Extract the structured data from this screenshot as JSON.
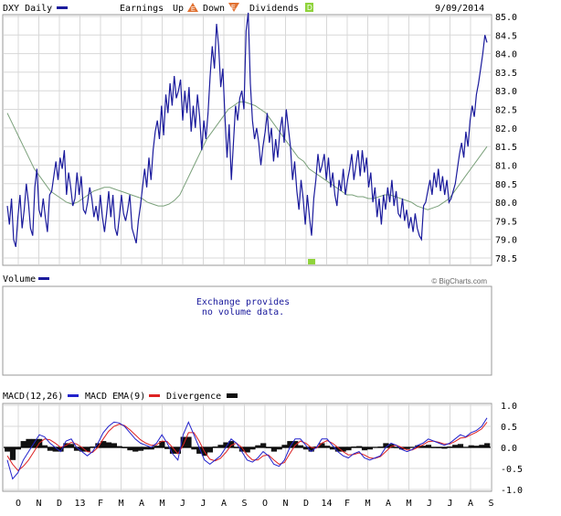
{
  "header": {
    "symbol_label": "DXY Daily",
    "earnings_label": "Earnings",
    "up_label": "Up",
    "down_label": "Down",
    "dividends_label": "Dividends",
    "date": "9/09/2014"
  },
  "volume": {
    "label": "Volume",
    "copyright": "© BigCharts.com",
    "note_line1": "Exchange provides",
    "note_line2": "no volume data."
  },
  "macd": {
    "label": "MACD(12,26)",
    "ema_label": "MACD EMA(9)",
    "divergence_label": "Divergence"
  },
  "colors": {
    "price": "#1a1a9c",
    "moving_average": "#7aa07a",
    "macd": "#2222cc",
    "ema": "#dd2222",
    "divergence": "#111111",
    "up_marker": "#e07030",
    "down_marker": "#e07030",
    "dividend_marker": "#8fd33b"
  },
  "chart_data": [
    {
      "type": "line",
      "series": [
        {
          "values": [
            79.9,
            79.4,
            80.1,
            79.0,
            78.8,
            79.6,
            80.2,
            79.3,
            79.8,
            80.5,
            80.0,
            79.3,
            79.1,
            80.4,
            80.9,
            79.8,
            79.6,
            80.1,
            79.6,
            79.2,
            80.2,
            80.3,
            80.7,
            81.1,
            80.6,
            81.2,
            80.9,
            81.4,
            80.2,
            80.8,
            80.4,
            79.9,
            80.1,
            80.8,
            80.2,
            80.7,
            79.8,
            79.7,
            80.0,
            80.4,
            80.1,
            79.6,
            79.9,
            79.5,
            80.2,
            79.6,
            79.2,
            79.7,
            80.3,
            79.6,
            80.2,
            79.3,
            79.1,
            79.6,
            80.2,
            79.7,
            79.5,
            79.8,
            80.2,
            79.3,
            79.1,
            78.9,
            79.5,
            79.9,
            80.4,
            80.9,
            80.4,
            81.2,
            80.6,
            81.4,
            81.9,
            82.2,
            81.7,
            82.6,
            81.8,
            82.9,
            82.4,
            83.2,
            82.6,
            83.4,
            82.8,
            83.0,
            83.3,
            82.2,
            83.0,
            82.4,
            83.1,
            81.9,
            82.6,
            82.0,
            82.9,
            82.3,
            81.4,
            82.2,
            81.7,
            82.4,
            83.4,
            84.2,
            83.6,
            84.8,
            84.2,
            83.1,
            83.6,
            82.3,
            81.2,
            82.1,
            80.6,
            81.6,
            82.6,
            82.2,
            82.8,
            83.0,
            82.5,
            84.6,
            85.1,
            83.2,
            82.2,
            81.7,
            82.0,
            81.6,
            81.0,
            81.5,
            81.9,
            82.4,
            81.6,
            82.0,
            81.1,
            81.7,
            81.2,
            81.9,
            82.3,
            81.6,
            82.5,
            82.0,
            81.5,
            80.6,
            81.1,
            80.3,
            79.8,
            80.6,
            80.1,
            79.4,
            80.2,
            79.6,
            79.1,
            80.1,
            80.6,
            81.3,
            80.8,
            81.0,
            81.3,
            80.6,
            81.2,
            80.4,
            80.8,
            80.2,
            79.9,
            80.6,
            80.3,
            80.9,
            80.2,
            80.6,
            80.9,
            81.3,
            80.6,
            81.0,
            81.4,
            80.7,
            81.4,
            80.8,
            81.2,
            80.4,
            80.8,
            80.0,
            80.4,
            79.6,
            80.1,
            79.4,
            80.2,
            79.8,
            80.4,
            80.0,
            80.6,
            79.9,
            80.3,
            79.7,
            79.6,
            80.1,
            79.5,
            79.8,
            79.3,
            79.6,
            79.2,
            79.7,
            79.3,
            79.1,
            79.0,
            79.9,
            80.0,
            80.3,
            80.6,
            80.2,
            80.8,
            80.4,
            80.9,
            80.3,
            80.7,
            80.2,
            80.6,
            80.0,
            80.1,
            80.3,
            80.5,
            80.9,
            81.3,
            81.6,
            81.2,
            81.9,
            81.5,
            82.2,
            82.6,
            82.3,
            82.9,
            83.2,
            83.6,
            84.0,
            84.5,
            84.3
          ]
        },
        {
          "values": [
            82.4,
            82.1,
            81.8,
            81.5,
            81.2,
            80.9,
            80.7,
            80.5,
            80.3,
            80.2,
            80.1,
            80.0,
            79.95,
            80.0,
            80.1,
            80.2,
            80.3,
            80.35,
            80.4,
            80.4,
            80.35,
            80.3,
            80.25,
            80.2,
            80.15,
            80.1,
            80.0,
            79.95,
            79.9,
            79.9,
            79.95,
            80.05,
            80.2,
            80.5,
            80.8,
            81.1,
            81.4,
            81.7,
            81.9,
            82.1,
            82.3,
            82.5,
            82.6,
            82.7,
            82.7,
            82.65,
            82.6,
            82.5,
            82.4,
            82.2,
            82.0,
            81.8,
            81.6,
            81.4,
            81.2,
            81.1,
            80.9,
            80.8,
            80.7,
            80.6,
            80.5,
            80.4,
            80.3,
            80.2,
            80.2,
            80.15,
            80.15,
            80.1,
            80.1,
            80.15,
            80.2,
            80.2,
            80.15,
            80.1,
            80.05,
            80.0,
            79.9,
            79.85,
            79.8,
            79.85,
            79.9,
            80.0,
            80.1,
            80.3,
            80.5,
            80.7,
            80.9,
            81.1,
            81.3,
            81.5
          ]
        }
      ],
      "x_tick_labels": [
        "O",
        "N",
        "D",
        "13",
        "F",
        "M",
        "A",
        "M",
        "J",
        "J",
        "A",
        "S",
        "O",
        "N",
        "D",
        "14",
        "F",
        "M",
        "A",
        "M",
        "J",
        "J",
        "A",
        "S"
      ],
      "y_ticks": [
        "85.0",
        "84.5",
        "84.0",
        "83.5",
        "83.0",
        "82.5",
        "82.0",
        "81.5",
        "81.0",
        "80.5",
        "80.0",
        "79.5",
        "79.0",
        "78.5"
      ],
      "ylim": [
        78.5,
        85.0
      ],
      "grid": true,
      "events": [
        {
          "type": "dividend",
          "x_index": 144
        }
      ]
    },
    {
      "type": "line",
      "series": [
        {
          "values": [
            -0.3,
            -0.75,
            -0.6,
            -0.3,
            -0.1,
            0.1,
            0.3,
            0.25,
            0.1,
            0.0,
            -0.1,
            0.15,
            0.2,
            0.0,
            -0.1,
            -0.2,
            -0.1,
            0.1,
            0.35,
            0.5,
            0.6,
            0.58,
            0.5,
            0.35,
            0.2,
            0.1,
            0.05,
            0.0,
            0.1,
            0.3,
            0.1,
            -0.15,
            -0.3,
            0.3,
            0.6,
            0.3,
            0.0,
            -0.3,
            -0.4,
            -0.3,
            -0.2,
            0.0,
            0.2,
            0.1,
            -0.1,
            -0.3,
            -0.35,
            -0.25,
            -0.1,
            -0.2,
            -0.4,
            -0.45,
            -0.3,
            0.0,
            0.2,
            0.2,
            0.05,
            -0.1,
            0.0,
            0.2,
            0.2,
            0.05,
            -0.1,
            -0.2,
            -0.25,
            -0.15,
            -0.1,
            -0.25,
            -0.3,
            -0.25,
            -0.2,
            0.0,
            0.1,
            0.05,
            -0.05,
            -0.1,
            -0.05,
            0.05,
            0.1,
            0.2,
            0.15,
            0.1,
            0.05,
            0.1,
            0.2,
            0.3,
            0.25,
            0.35,
            0.4,
            0.5,
            0.7
          ]
        },
        {
          "values": [
            -0.2,
            -0.4,
            -0.55,
            -0.45,
            -0.3,
            -0.1,
            0.1,
            0.2,
            0.18,
            0.1,
            0.0,
            0.05,
            0.12,
            0.08,
            0.0,
            -0.1,
            -0.12,
            0.0,
            0.2,
            0.38,
            0.5,
            0.55,
            0.52,
            0.42,
            0.3,
            0.18,
            0.1,
            0.05,
            0.06,
            0.15,
            0.14,
            0.0,
            -0.15,
            0.05,
            0.35,
            0.35,
            0.15,
            -0.1,
            -0.28,
            -0.32,
            -0.26,
            -0.12,
            0.05,
            0.1,
            0.0,
            -0.18,
            -0.3,
            -0.3,
            -0.2,
            -0.18,
            -0.3,
            -0.4,
            -0.36,
            -0.15,
            0.05,
            0.15,
            0.1,
            0.0,
            -0.02,
            0.1,
            0.16,
            0.1,
            0.0,
            -0.1,
            -0.18,
            -0.17,
            -0.13,
            -0.18,
            -0.25,
            -0.26,
            -0.22,
            -0.1,
            0.02,
            0.05,
            0.0,
            -0.06,
            -0.06,
            0.0,
            0.06,
            0.14,
            0.15,
            0.12,
            0.08,
            0.08,
            0.14,
            0.22,
            0.24,
            0.3,
            0.36,
            0.44,
            0.6
          ]
        }
      ],
      "divergence": [
        -0.1,
        -0.3,
        -0.05,
        0.15,
        0.2,
        0.2,
        0.2,
        0.05,
        -0.08,
        -0.1,
        -0.1,
        0.1,
        0.08,
        -0.08,
        -0.1,
        -0.1,
        0.02,
        0.1,
        0.15,
        0.12,
        0.1,
        0.03,
        -0.02,
        -0.07,
        -0.1,
        -0.08,
        -0.05,
        -0.05,
        0.04,
        0.15,
        -0.04,
        -0.15,
        -0.15,
        0.25,
        0.25,
        -0.05,
        -0.15,
        -0.2,
        -0.12,
        0.02,
        0.06,
        0.12,
        0.15,
        0.0,
        -0.1,
        -0.12,
        -0.05,
        0.05,
        0.1,
        -0.02,
        -0.1,
        -0.05,
        0.06,
        0.15,
        0.15,
        0.05,
        -0.05,
        -0.1,
        0.02,
        0.1,
        0.04,
        -0.05,
        -0.1,
        -0.1,
        -0.07,
        0.02,
        0.03,
        -0.07,
        -0.05,
        0.01,
        0.02,
        0.1,
        0.08,
        0.0,
        -0.05,
        -0.04,
        0.01,
        0.05,
        0.04,
        0.06,
        0.0,
        -0.02,
        -0.03,
        0.02,
        0.06,
        0.08,
        0.01,
        0.05,
        0.04,
        0.06,
        0.1
      ],
      "y_ticks": [
        "1.0",
        "0.5",
        "0.0",
        "-0.5",
        "-1.0"
      ],
      "ylim": [
        -1.0,
        1.0
      ],
      "grid": true
    }
  ]
}
